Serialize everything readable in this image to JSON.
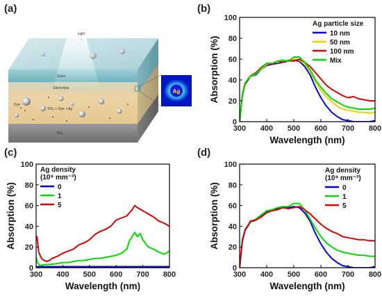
{
  "panel_labels": [
    "(a)",
    "(b)",
    "(c)",
    "(d)"
  ],
  "illustration": {
    "labels": {
      "light": "Light",
      "glass": "Glass",
      "electrolyte": "Electrolyte",
      "layer": "TiO₂ + Dye + Ag",
      "base": "TiO₂",
      "dye": "Dye",
      "ag": "Ag"
    }
  },
  "colors": {
    "blue": "#0000e6",
    "green": "#00dd00",
    "red": "#dd0000",
    "yellow": "#f0d000",
    "axis": "#000000"
  },
  "chart_data": [
    {
      "id": "b",
      "type": "line",
      "xlabel": "Wavelength (nm)",
      "ylabel": "Absorption (%)",
      "xlim": [
        300,
        800
      ],
      "ylim": [
        0,
        100
      ],
      "xticks": [
        300,
        400,
        500,
        600,
        700,
        800
      ],
      "yticks": [
        0,
        20,
        40,
        60,
        80,
        100
      ],
      "legend_title": [
        "Ag particle size"
      ],
      "legend_position": "top-right",
      "series": [
        {
          "name": "10 nm",
          "color": "#0000e6",
          "x": [
            300,
            310,
            320,
            340,
            360,
            380,
            400,
            420,
            440,
            460,
            480,
            500,
            520,
            540,
            560,
            580,
            600,
            620,
            640,
            660,
            680,
            700,
            720,
            740,
            760,
            780,
            800
          ],
          "y": [
            0,
            25,
            36,
            43,
            45,
            50,
            54,
            55,
            56,
            57,
            58,
            59,
            58,
            53,
            45,
            33,
            23,
            15,
            9,
            5,
            2,
            1,
            0,
            0,
            0,
            0,
            1
          ]
        },
        {
          "name": "50 nm",
          "color": "#f0d000",
          "x": [
            300,
            310,
            320,
            340,
            360,
            380,
            400,
            420,
            440,
            460,
            480,
            500,
            520,
            540,
            560,
            580,
            600,
            620,
            640,
            660,
            680,
            700,
            720,
            740,
            760,
            780,
            800
          ],
          "y": [
            0,
            26,
            37,
            43,
            46,
            50,
            55,
            56,
            57,
            58,
            58,
            60,
            59,
            55,
            48,
            38,
            30,
            24,
            19,
            15,
            12,
            11,
            10,
            9,
            9,
            8,
            9
          ]
        },
        {
          "name": "100 nm",
          "color": "#dd0000",
          "x": [
            300,
            310,
            320,
            340,
            360,
            380,
            400,
            420,
            440,
            460,
            480,
            500,
            520,
            540,
            560,
            580,
            600,
            620,
            640,
            660,
            680,
            700,
            720,
            740,
            760,
            780,
            800
          ],
          "y": [
            0,
            25,
            36,
            44,
            47,
            52,
            56,
            55,
            58,
            57,
            59,
            58,
            60,
            57,
            53,
            47,
            41,
            35,
            31,
            28,
            25,
            23,
            24,
            22,
            21,
            20,
            20
          ]
        },
        {
          "name": "Mix",
          "color": "#00dd00",
          "x": [
            300,
            310,
            320,
            340,
            360,
            380,
            400,
            420,
            440,
            460,
            480,
            500,
            520,
            540,
            560,
            580,
            600,
            620,
            640,
            660,
            680,
            700,
            720,
            740,
            760,
            780,
            800
          ],
          "y": [
            0,
            26,
            37,
            44,
            46,
            51,
            56,
            56,
            58,
            59,
            58,
            62,
            62,
            57,
            50,
            40,
            33,
            27,
            22,
            19,
            16,
            14,
            13,
            12,
            12,
            12,
            13
          ]
        }
      ]
    },
    {
      "id": "c",
      "type": "line",
      "xlabel": "Wavelength (nm)",
      "ylabel": "Absorption (%)",
      "xlim": [
        300,
        800
      ],
      "ylim": [
        0,
        100
      ],
      "xticks": [
        300,
        400,
        500,
        600,
        700,
        800
      ],
      "yticks": [
        0,
        20,
        40,
        60,
        80,
        100
      ],
      "legend_title": [
        "Ag density",
        "(10⁹ mm⁻³)"
      ],
      "legend_position": "top-left",
      "series": [
        {
          "name": "0",
          "color": "#0000e6",
          "x": [
            300,
            350,
            400,
            450,
            500,
            550,
            600,
            650,
            700,
            750,
            800
          ],
          "y": [
            1,
            1,
            1,
            1,
            1,
            1,
            1,
            1,
            1,
            1,
            1
          ]
        },
        {
          "name": "1",
          "color": "#00dd00",
          "x": [
            300,
            305,
            315,
            330,
            350,
            380,
            400,
            420,
            440,
            460,
            480,
            500,
            520,
            540,
            560,
            580,
            600,
            620,
            640,
            650,
            660,
            670,
            680,
            690,
            700,
            720,
            740,
            760,
            780,
            800
          ],
          "y": [
            10,
            5,
            2,
            3,
            3,
            4,
            5,
            5,
            6,
            7,
            7,
            8,
            9,
            9,
            10,
            11,
            12,
            14,
            18,
            26,
            30,
            34,
            30,
            33,
            27,
            20,
            18,
            15,
            13,
            16
          ]
        },
        {
          "name": "5",
          "color": "#dd0000",
          "x": [
            300,
            303,
            310,
            320,
            330,
            340,
            350,
            360,
            380,
            400,
            420,
            440,
            460,
            480,
            500,
            520,
            540,
            560,
            580,
            600,
            620,
            640,
            660,
            670,
            680,
            700,
            720,
            740,
            760,
            780,
            800
          ],
          "y": [
            27,
            30,
            15,
            9,
            7,
            6,
            7,
            9,
            11,
            14,
            16,
            18,
            22,
            24,
            27,
            32,
            35,
            37,
            40,
            46,
            48,
            50,
            56,
            60,
            58,
            55,
            52,
            49,
            45,
            43,
            40
          ]
        }
      ]
    },
    {
      "id": "d",
      "type": "line",
      "xlabel": "Wavelength (nm)",
      "ylabel": "Absorption (%)",
      "xlim": [
        300,
        800
      ],
      "ylim": [
        0,
        100
      ],
      "xticks": [
        300,
        400,
        500,
        600,
        700,
        800
      ],
      "yticks": [
        0,
        20,
        40,
        60,
        80,
        100
      ],
      "legend_title": [
        "Ag density",
        "(10⁹ mm⁻³)"
      ],
      "legend_position": "top-right",
      "series": [
        {
          "name": "0",
          "color": "#0000e6",
          "x": [
            300,
            310,
            320,
            340,
            360,
            380,
            400,
            420,
            440,
            460,
            480,
            500,
            520,
            540,
            560,
            580,
            600,
            620,
            640,
            660,
            680,
            700,
            720,
            740,
            760,
            780,
            800
          ],
          "y": [
            0,
            25,
            36,
            44,
            46,
            50,
            54,
            55,
            57,
            58,
            58,
            59,
            58,
            53,
            45,
            33,
            23,
            15,
            9,
            5,
            2,
            1,
            0,
            0,
            0,
            0,
            1
          ]
        },
        {
          "name": "1",
          "color": "#00dd00",
          "x": [
            300,
            310,
            320,
            340,
            360,
            380,
            400,
            420,
            440,
            460,
            480,
            500,
            520,
            540,
            560,
            580,
            600,
            620,
            640,
            660,
            680,
            700,
            720,
            740,
            760,
            780,
            800
          ],
          "y": [
            0,
            26,
            37,
            44,
            47,
            51,
            55,
            56,
            58,
            59,
            59,
            62,
            62,
            56,
            47,
            38,
            30,
            24,
            20,
            17,
            15,
            14,
            13,
            12,
            12,
            11,
            11
          ]
        },
        {
          "name": "5",
          "color": "#dd0000",
          "x": [
            300,
            310,
            320,
            340,
            360,
            380,
            400,
            420,
            440,
            460,
            480,
            500,
            520,
            540,
            560,
            580,
            600,
            620,
            640,
            660,
            680,
            700,
            720,
            740,
            760,
            780,
            800
          ],
          "y": [
            0,
            27,
            36,
            45,
            46,
            49,
            53,
            55,
            56,
            58,
            57,
            58,
            59,
            56,
            52,
            47,
            42,
            38,
            35,
            33,
            30,
            29,
            28,
            27,
            27,
            26,
            26
          ]
        }
      ]
    }
  ]
}
